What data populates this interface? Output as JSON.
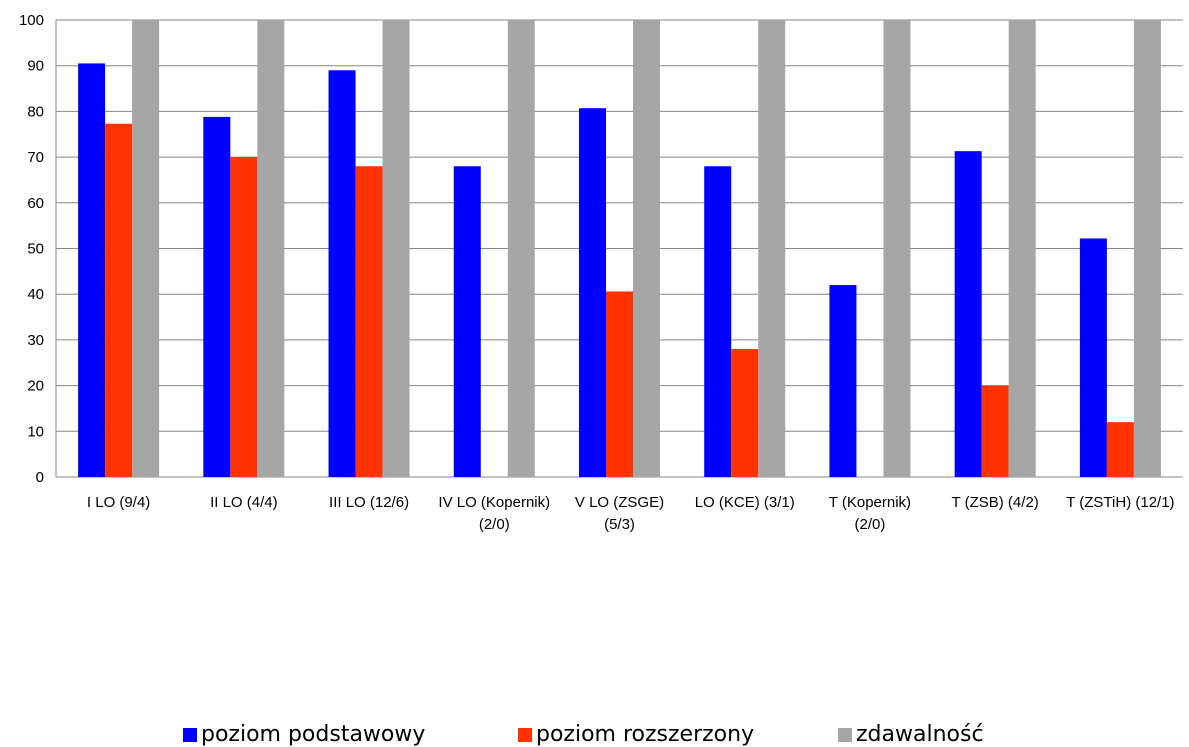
{
  "chart_data": {
    "type": "bar",
    "ylim": [
      0,
      100
    ],
    "yticks": [
      0,
      10,
      20,
      30,
      40,
      50,
      60,
      70,
      80,
      90,
      100
    ],
    "grid": true,
    "legend_position": "bottom",
    "categories": [
      [
        "I LO (9/4)"
      ],
      [
        "II LO (4/4)"
      ],
      [
        "III LO (12/6)"
      ],
      [
        "IV LO (Kopernik)",
        "(2/0)"
      ],
      [
        "V LO (ZSGE)",
        "(5/3)"
      ],
      [
        "LO (KCE) (3/1)"
      ],
      [
        "T (Kopernik)",
        "(2/0)"
      ],
      [
        "T (ZSB) (4/2)"
      ],
      [
        "T (ZSTiH) (12/1)"
      ]
    ],
    "series": [
      {
        "name": "poziom podstawowy",
        "color": "#0000FF",
        "values": [
          90.5,
          78.8,
          89.0,
          68.0,
          80.7,
          68.0,
          42.0,
          71.3,
          52.2
        ]
      },
      {
        "name": "poziom rozszerzony",
        "color": "#FF3300",
        "values": [
          77.3,
          70.0,
          68.0,
          0,
          40.6,
          28.0,
          0,
          20.0,
          12.0
        ]
      },
      {
        "name": "zdawalność",
        "color": "#A6A6A6",
        "values": [
          100,
          100,
          100,
          100,
          100,
          100,
          100,
          100,
          100
        ]
      }
    ]
  }
}
